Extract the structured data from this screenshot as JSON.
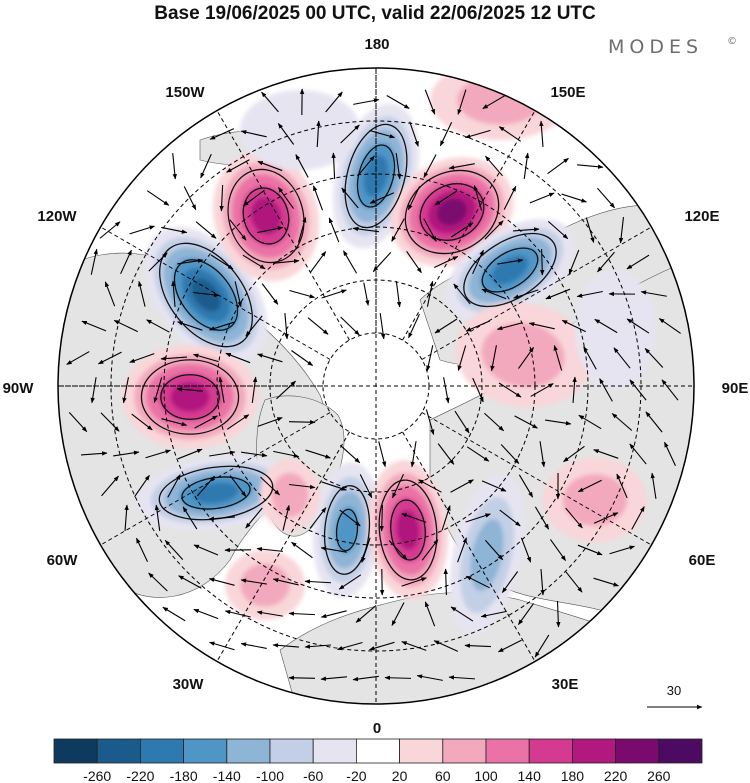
{
  "title": "Base 19/06/2025 00 UTC, valid 22/06/2025 12 UTC",
  "brand": {
    "name": "MODES",
    "mark": "©"
  },
  "longitude_labels": {
    "lon_180": "180",
    "lon_150E": "150E",
    "lon_120E": "120E",
    "lon_90E": "90E",
    "lon_60E": "60E",
    "lon_30E": "30E",
    "lon_0": "0",
    "lon_30W": "30W",
    "lon_60W": "60W",
    "lon_90W": "90W",
    "lon_120W": "120W",
    "lon_150W": "150W"
  },
  "vector_reference": {
    "value": "30"
  },
  "colorbar": {
    "labels": [
      "-260",
      "-220",
      "-180",
      "-140",
      "-100",
      "-60",
      "-20",
      "20",
      "60",
      "100",
      "140",
      "180",
      "220",
      "260"
    ],
    "colors": [
      "#0f3a5f",
      "#1b5b8c",
      "#2e79b0",
      "#4f96c7",
      "#8eb4d6",
      "#c3cfe6",
      "#e6e4f1",
      "#ffffff",
      "#f9d6d9",
      "#f3a9bd",
      "#ea72a6",
      "#d53a91",
      "#b1197e",
      "#7a0a6e",
      "#4d0a63"
    ]
  },
  "colors": {
    "land": "#e4e4e4",
    "ocean": "#ffffff",
    "graticule": "#000000"
  }
}
